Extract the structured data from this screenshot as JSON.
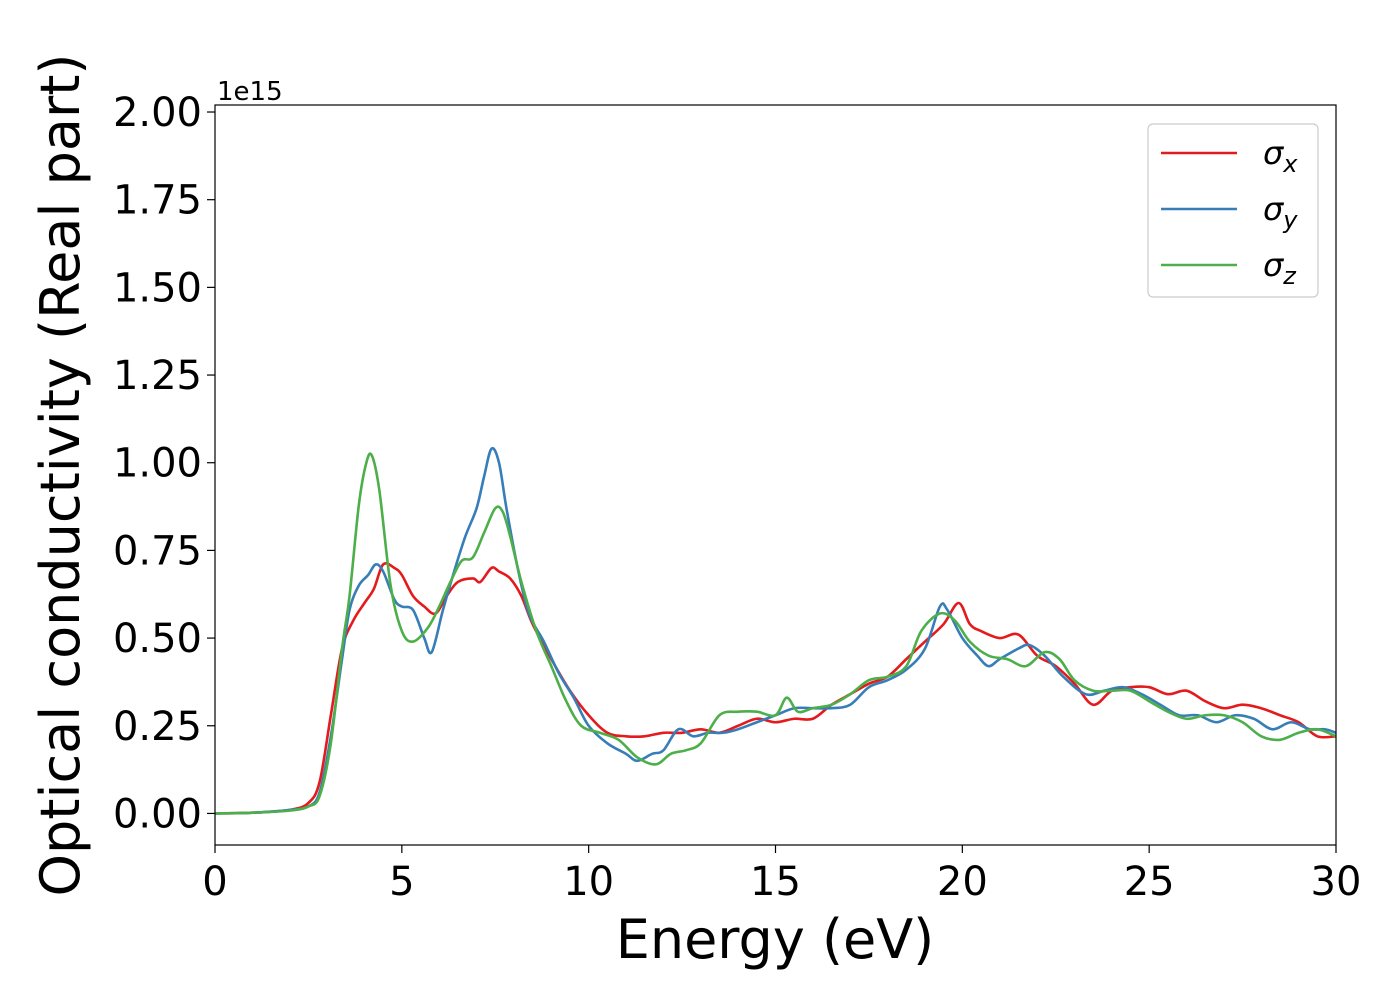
{
  "chart_data": {
    "type": "line",
    "xlabel": "Energy (eV)",
    "ylabel": "Optical conductivity (Real part)",
    "y_multiplier": "1e15",
    "xlim": [
      0,
      30
    ],
    "ylim": [
      -0.09,
      2.02
    ],
    "x_ticks": [
      0,
      5,
      10,
      15,
      20,
      25,
      30
    ],
    "x_tick_labels": [
      "0",
      "5",
      "10",
      "15",
      "20",
      "25",
      "30"
    ],
    "y_ticks": [
      0.0,
      0.25,
      0.5,
      0.75,
      1.0,
      1.25,
      1.5,
      1.75,
      2.0
    ],
    "y_tick_labels": [
      "0.00",
      "0.25",
      "0.50",
      "0.75",
      "1.00",
      "1.25",
      "1.50",
      "1.75",
      "2.00"
    ],
    "grid": false,
    "legend_position": "top-right",
    "series": [
      {
        "name": "σx",
        "name_base": "σ",
        "name_sub": "x",
        "color": "#e41a1c",
        "points": [
          [
            0,
            0
          ],
          [
            1,
            0.002
          ],
          [
            2,
            0.01
          ],
          [
            2.5,
            0.03
          ],
          [
            2.8,
            0.09
          ],
          [
            3.1,
            0.28
          ],
          [
            3.4,
            0.47
          ],
          [
            3.7,
            0.55
          ],
          [
            4.0,
            0.6
          ],
          [
            4.25,
            0.64
          ],
          [
            4.5,
            0.71
          ],
          [
            4.8,
            0.7
          ],
          [
            5.0,
            0.68
          ],
          [
            5.3,
            0.62
          ],
          [
            5.6,
            0.59
          ],
          [
            5.9,
            0.57
          ],
          [
            6.2,
            0.62
          ],
          [
            6.5,
            0.66
          ],
          [
            6.9,
            0.67
          ],
          [
            7.1,
            0.66
          ],
          [
            7.4,
            0.7
          ],
          [
            7.6,
            0.69
          ],
          [
            7.9,
            0.67
          ],
          [
            8.2,
            0.62
          ],
          [
            8.5,
            0.54
          ],
          [
            9.0,
            0.44
          ],
          [
            9.5,
            0.35
          ],
          [
            10.0,
            0.28
          ],
          [
            10.5,
            0.23
          ],
          [
            11.0,
            0.22
          ],
          [
            11.5,
            0.22
          ],
          [
            12.0,
            0.23
          ],
          [
            12.5,
            0.23
          ],
          [
            13.0,
            0.24
          ],
          [
            13.5,
            0.23
          ],
          [
            14.0,
            0.25
          ],
          [
            14.5,
            0.27
          ],
          [
            15.0,
            0.26
          ],
          [
            15.5,
            0.27
          ],
          [
            16.0,
            0.27
          ],
          [
            16.5,
            0.31
          ],
          [
            17.0,
            0.34
          ],
          [
            17.5,
            0.37
          ],
          [
            18.0,
            0.39
          ],
          [
            18.5,
            0.44
          ],
          [
            19.0,
            0.49
          ],
          [
            19.5,
            0.54
          ],
          [
            19.9,
            0.6
          ],
          [
            20.2,
            0.54
          ],
          [
            20.5,
            0.52
          ],
          [
            21.0,
            0.5
          ],
          [
            21.5,
            0.51
          ],
          [
            22.0,
            0.45
          ],
          [
            22.5,
            0.42
          ],
          [
            23.0,
            0.37
          ],
          [
            23.5,
            0.31
          ],
          [
            24.0,
            0.35
          ],
          [
            24.5,
            0.36
          ],
          [
            25.0,
            0.36
          ],
          [
            25.5,
            0.34
          ],
          [
            26.0,
            0.35
          ],
          [
            26.5,
            0.32
          ],
          [
            27.0,
            0.3
          ],
          [
            27.5,
            0.31
          ],
          [
            28.0,
            0.3
          ],
          [
            28.5,
            0.28
          ],
          [
            29.0,
            0.26
          ],
          [
            29.5,
            0.22
          ],
          [
            30,
            0.22
          ]
        ]
      },
      {
        "name": "σy",
        "name_base": "σ",
        "name_sub": "y",
        "color": "#377eb8",
        "points": [
          [
            0,
            0
          ],
          [
            1,
            0.002
          ],
          [
            2,
            0.01
          ],
          [
            2.5,
            0.02
          ],
          [
            2.8,
            0.06
          ],
          [
            3.1,
            0.22
          ],
          [
            3.4,
            0.44
          ],
          [
            3.6,
            0.58
          ],
          [
            3.85,
            0.65
          ],
          [
            4.1,
            0.68
          ],
          [
            4.3,
            0.71
          ],
          [
            4.5,
            0.69
          ],
          [
            4.8,
            0.61
          ],
          [
            5.0,
            0.59
          ],
          [
            5.3,
            0.58
          ],
          [
            5.6,
            0.5
          ],
          [
            5.8,
            0.46
          ],
          [
            6.1,
            0.58
          ],
          [
            6.4,
            0.69
          ],
          [
            6.7,
            0.79
          ],
          [
            7.0,
            0.87
          ],
          [
            7.2,
            0.96
          ],
          [
            7.4,
            1.04
          ],
          [
            7.6,
            1.0
          ],
          [
            7.8,
            0.87
          ],
          [
            8.1,
            0.7
          ],
          [
            8.4,
            0.57
          ],
          [
            8.8,
            0.49
          ],
          [
            9.2,
            0.4
          ],
          [
            9.6,
            0.33
          ],
          [
            10.0,
            0.25
          ],
          [
            10.5,
            0.2
          ],
          [
            11.0,
            0.17
          ],
          [
            11.3,
            0.15
          ],
          [
            11.7,
            0.17
          ],
          [
            12.0,
            0.18
          ],
          [
            12.4,
            0.24
          ],
          [
            12.8,
            0.22
          ],
          [
            13.2,
            0.23
          ],
          [
            13.6,
            0.23
          ],
          [
            14.0,
            0.24
          ],
          [
            14.5,
            0.26
          ],
          [
            15.0,
            0.28
          ],
          [
            15.5,
            0.3
          ],
          [
            16.0,
            0.3
          ],
          [
            16.5,
            0.3
          ],
          [
            17.0,
            0.31
          ],
          [
            17.5,
            0.36
          ],
          [
            18.0,
            0.38
          ],
          [
            18.5,
            0.41
          ],
          [
            19.0,
            0.47
          ],
          [
            19.4,
            0.59
          ],
          [
            19.6,
            0.58
          ],
          [
            20.0,
            0.5
          ],
          [
            20.4,
            0.45
          ],
          [
            20.7,
            0.42
          ],
          [
            21.0,
            0.44
          ],
          [
            21.5,
            0.47
          ],
          [
            21.8,
            0.48
          ],
          [
            22.2,
            0.45
          ],
          [
            22.7,
            0.39
          ],
          [
            23.3,
            0.34
          ],
          [
            23.8,
            0.35
          ],
          [
            24.3,
            0.36
          ],
          [
            24.8,
            0.34
          ],
          [
            25.3,
            0.31
          ],
          [
            25.8,
            0.28
          ],
          [
            26.3,
            0.28
          ],
          [
            26.8,
            0.26
          ],
          [
            27.3,
            0.28
          ],
          [
            27.8,
            0.27
          ],
          [
            28.3,
            0.24
          ],
          [
            28.8,
            0.26
          ],
          [
            29.3,
            0.24
          ],
          [
            29.7,
            0.24
          ],
          [
            30,
            0.23
          ]
        ]
      },
      {
        "name": "σz",
        "name_base": "σ",
        "name_sub": "z",
        "color": "#4daf4a",
        "points": [
          [
            0,
            0
          ],
          [
            1,
            0.002
          ],
          [
            2,
            0.008
          ],
          [
            2.5,
            0.02
          ],
          [
            2.8,
            0.05
          ],
          [
            3.1,
            0.2
          ],
          [
            3.4,
            0.47
          ],
          [
            3.6,
            0.62
          ],
          [
            3.85,
            0.88
          ],
          [
            4.05,
            1.0
          ],
          [
            4.2,
            1.02
          ],
          [
            4.4,
            0.92
          ],
          [
            4.7,
            0.65
          ],
          [
            5.0,
            0.52
          ],
          [
            5.3,
            0.49
          ],
          [
            5.7,
            0.53
          ],
          [
            6.0,
            0.59
          ],
          [
            6.3,
            0.66
          ],
          [
            6.6,
            0.72
          ],
          [
            6.9,
            0.73
          ],
          [
            7.2,
            0.8
          ],
          [
            7.5,
            0.87
          ],
          [
            7.7,
            0.86
          ],
          [
            7.9,
            0.79
          ],
          [
            8.2,
            0.66
          ],
          [
            8.6,
            0.52
          ],
          [
            9.0,
            0.42
          ],
          [
            9.4,
            0.32
          ],
          [
            9.8,
            0.25
          ],
          [
            10.3,
            0.23
          ],
          [
            10.8,
            0.21
          ],
          [
            11.3,
            0.16
          ],
          [
            11.8,
            0.14
          ],
          [
            12.2,
            0.17
          ],
          [
            12.6,
            0.18
          ],
          [
            13.0,
            0.2
          ],
          [
            13.5,
            0.28
          ],
          [
            14.0,
            0.29
          ],
          [
            14.5,
            0.29
          ],
          [
            15.0,
            0.28
          ],
          [
            15.3,
            0.33
          ],
          [
            15.6,
            0.29
          ],
          [
            16.0,
            0.3
          ],
          [
            16.5,
            0.31
          ],
          [
            17.0,
            0.34
          ],
          [
            17.5,
            0.38
          ],
          [
            18.0,
            0.39
          ],
          [
            18.5,
            0.42
          ],
          [
            18.9,
            0.52
          ],
          [
            19.4,
            0.57
          ],
          [
            19.8,
            0.55
          ],
          [
            20.2,
            0.49
          ],
          [
            20.7,
            0.45
          ],
          [
            21.2,
            0.44
          ],
          [
            21.7,
            0.42
          ],
          [
            22.2,
            0.46
          ],
          [
            22.6,
            0.44
          ],
          [
            23.0,
            0.38
          ],
          [
            23.5,
            0.35
          ],
          [
            24.0,
            0.35
          ],
          [
            24.5,
            0.35
          ],
          [
            25.0,
            0.32
          ],
          [
            25.5,
            0.29
          ],
          [
            26.0,
            0.27
          ],
          [
            26.5,
            0.28
          ],
          [
            27.0,
            0.28
          ],
          [
            27.5,
            0.26
          ],
          [
            28.0,
            0.22
          ],
          [
            28.5,
            0.21
          ],
          [
            29.0,
            0.23
          ],
          [
            29.5,
            0.24
          ],
          [
            30,
            0.22
          ]
        ]
      }
    ]
  }
}
